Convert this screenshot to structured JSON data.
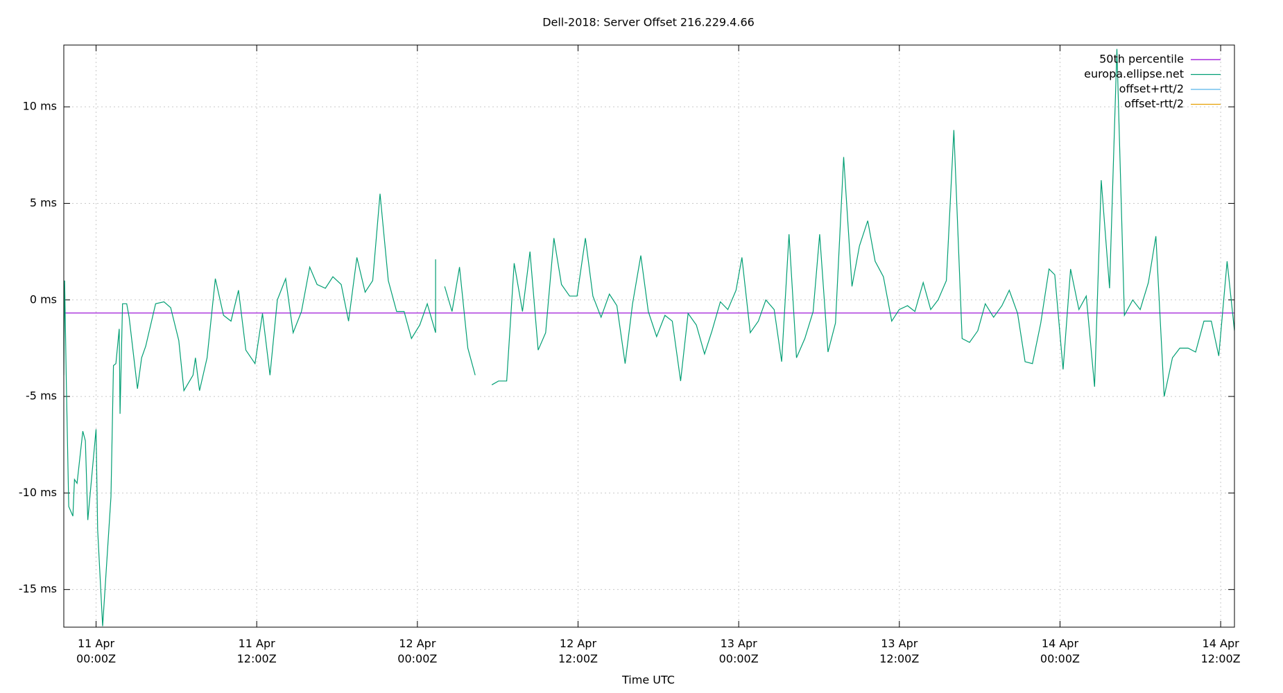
{
  "chart_data": {
    "type": "line",
    "title": "Dell-2018: Server Offset 216.229.4.66",
    "xlabel": "Time UTC",
    "xlim": [
      -2.41,
      85.03
    ],
    "ylim": [
      -16.95,
      13.2
    ],
    "xticks": [
      {
        "value": 0,
        "label": "11 Apr\n00:00Z"
      },
      {
        "value": 12,
        "label": "11 Apr\n12:00Z"
      },
      {
        "value": 24,
        "label": "12 Apr\n00:00Z"
      },
      {
        "value": 36,
        "label": "12 Apr\n12:00Z"
      },
      {
        "value": 48,
        "label": "13 Apr\n00:00Z"
      },
      {
        "value": 60,
        "label": "13 Apr\n12:00Z"
      },
      {
        "value": 72,
        "label": "14 Apr\n00:00Z"
      },
      {
        "value": 84,
        "label": "14 Apr\n12:00Z"
      }
    ],
    "yticks": [
      {
        "value": -15,
        "label": "-15 ms"
      },
      {
        "value": -10,
        "label": "-10 ms"
      },
      {
        "value": -5,
        "label": "-5 ms"
      },
      {
        "value": 0,
        "label": "0 ms"
      },
      {
        "value": 5,
        "label": "5 ms"
      },
      {
        "value": 10,
        "label": "10 ms"
      }
    ],
    "grid": true,
    "legend": "top right",
    "x": [
      -2.41,
      -2.35,
      -2.23,
      -2.04,
      -1.73,
      -1.61,
      -1.42,
      -0.99,
      -0.8,
      -0.62,
      0,
      0.12,
      0.49,
      1.11,
      1.3,
      1.48,
      1.73,
      1.79,
      1.98,
      2.29,
      2.47,
      3.09,
      3.4,
      3.71,
      4.45,
      5.07,
      5.57,
      6.18,
      6.56,
      7.24,
      7.42,
      7.73,
      8.29,
      8.91,
      9.52,
      10.08,
      10.64,
      11.19,
      11.87,
      12.43,
      12.99,
      13.54,
      14.16,
      14.72,
      15.34,
      15.96,
      16.51,
      17.13,
      17.69,
      18.31,
      18.86,
      19.48,
      20.1,
      20.66,
      21.21,
      21.83,
      22.45,
      23.01,
      23.56,
      24.18,
      24.74,
      25.36,
      25.36,
      null,
      26.04,
      26.59,
      27.15,
      27.77,
      28.32,
      null,
      29.56,
      30.06,
      30.67,
      31.23,
      31.85,
      32.41,
      33.02,
      33.58,
      34.2,
      34.76,
      35.37,
      35.93,
      36.55,
      37.11,
      37.72,
      38.34,
      38.9,
      39.52,
      40.07,
      40.69,
      41.25,
      41.87,
      42.49,
      43.04,
      43.66,
      44.22,
      44.84,
      45.45,
      46.01,
      46.63,
      47.19,
      47.8,
      48.24,
      48.86,
      49.47,
      50.03,
      50.65,
      51.21,
      51.76,
      52.32,
      52.94,
      53.56,
      54.05,
      54.67,
      55.23,
      55.84,
      56.46,
      57.02,
      57.64,
      58.19,
      58.81,
      59.43,
      59.99,
      60.61,
      61.16,
      61.78,
      62.34,
      62.89,
      63.51,
      64.07,
      64.69,
      65.24,
      65.86,
      66.42,
      67.04,
      67.66,
      68.21,
      68.83,
      69.39,
      69.94,
      70.56,
      71.18,
      71.61,
      72.23,
      72.79,
      73.41,
      73.96,
      74.58,
      75.08,
      75.7,
      76.25,
      76.81,
      77.43,
      77.99,
      78.6,
      79.16,
      79.78,
      80.4,
      80.95,
      81.57,
      82.13,
      82.75,
      83.3,
      83.86,
      84.48,
      85.03
    ],
    "series": [
      {
        "name": "europa.ellipse.net",
        "color": "#009e73",
        "values": [
          -3.9,
          1.0,
          -4.0,
          -10.7,
          -11.2,
          -9.3,
          -9.5,
          -6.8,
          -7.3,
          -11.4,
          -6.7,
          -11.9,
          -16.9,
          -10.2,
          -3.4,
          -3.3,
          -1.5,
          -5.9,
          -0.2,
          -0.2,
          -0.9,
          -4.6,
          -3.0,
          -2.4,
          -0.2,
          -0.1,
          -0.4,
          -2.1,
          -4.7,
          -3.9,
          -3.0,
          -4.7,
          -3.0,
          1.1,
          -0.8,
          -1.1,
          0.5,
          -2.6,
          -3.3,
          -0.7,
          -3.9,
          0,
          1.1,
          -1.7,
          -0.6,
          1.7,
          0.8,
          0.6,
          1.2,
          0.8,
          -1.1,
          2.2,
          0.4,
          1.0,
          5.5,
          1.0,
          -0.6,
          -0.6,
          -2.0,
          -1.3,
          -0.2,
          -1.7,
          2.1,
          null,
          0.7,
          -0.6,
          1.7,
          -2.5,
          -3.9,
          null,
          -4.4,
          -4.2,
          -4.2,
          1.9,
          -0.6,
          2.5,
          -2.6,
          -1.7,
          3.2,
          0.8,
          0.2,
          0.2,
          3.2,
          0.2,
          -0.9,
          0.3,
          -0.3,
          -3.3,
          -0.2,
          2.3,
          -0.6,
          -1.9,
          -0.8,
          -1.1,
          -4.2,
          -0.7,
          -1.3,
          -2.8,
          -1.6,
          -0.1,
          -0.5,
          0.5,
          2.2,
          -1.7,
          -1.1,
          0,
          -0.5,
          -3.2,
          3.4,
          -3.0,
          -2.0,
          -0.6,
          3.4,
          -2.7,
          -1.2,
          7.4,
          0.7,
          2.8,
          4.1,
          2.0,
          1.2,
          -1.1,
          -0.5,
          -0.3,
          -0.6,
          0.9,
          -0.5,
          0,
          1.0,
          8.8,
          -2.0,
          -2.2,
          -1.6,
          -0.2,
          -0.9,
          -0.3,
          0.5,
          -0.7,
          -3.2,
          -3.3,
          -1.2,
          1.6,
          1.3,
          -3.6,
          1.6,
          -0.5,
          0.2,
          -4.5,
          6.2,
          0.6,
          13.0,
          -0.8,
          0,
          -0.5,
          0.9,
          3.3,
          -5.0,
          -3.0,
          -2.5,
          -2.5,
          -2.7,
          -1.1,
          -1.1,
          -2.9,
          2.0,
          -1.6
        ]
      }
    ],
    "reference_lines": [
      {
        "name": "50th percentile",
        "color": "#9400d3",
        "value": -0.68
      }
    ],
    "legend_extra": [
      {
        "name": "offset+rtt/2",
        "color": "#56b4e9"
      },
      {
        "name": "offset-rtt/2",
        "color": "#e69f00"
      }
    ]
  }
}
